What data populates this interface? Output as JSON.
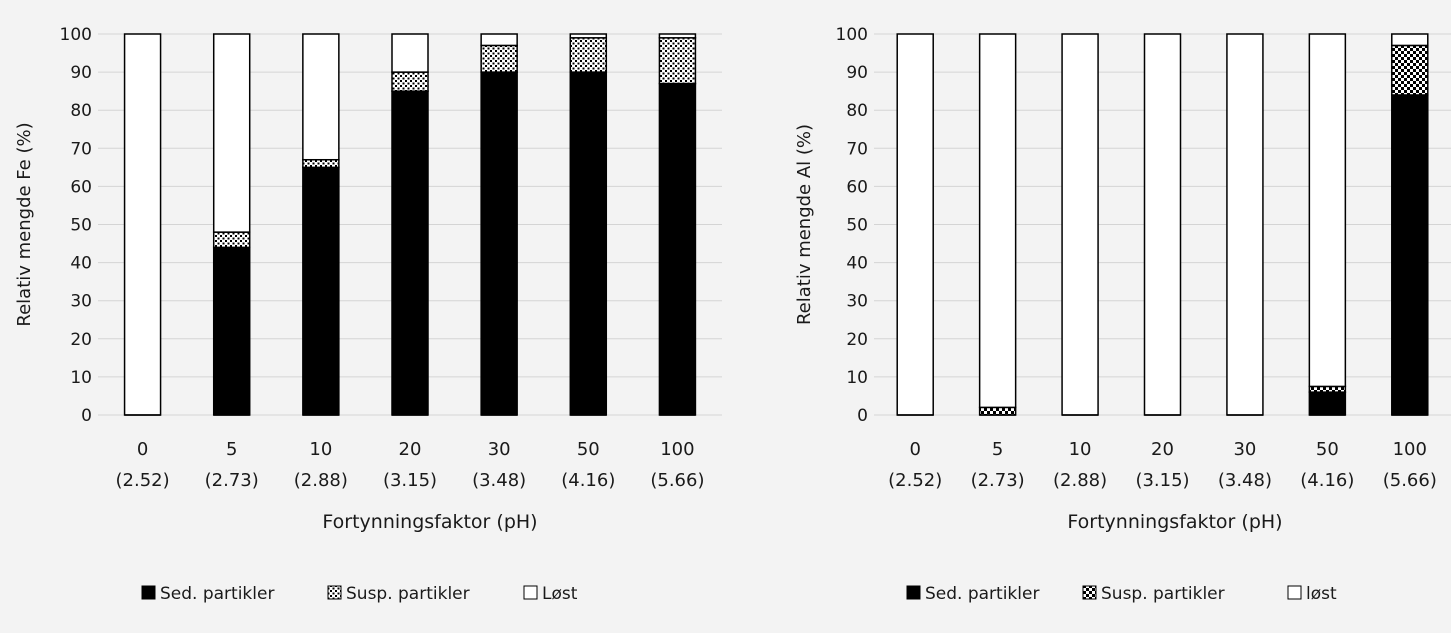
{
  "chart_data": [
    {
      "type": "bar",
      "stacked": true,
      "categories": [
        "0",
        "5",
        "10",
        "20",
        "30",
        "50",
        "100"
      ],
      "category_sublabels": [
        "(2.52)",
        "(2.73)",
        "(2.88)",
        "(3.15)",
        "(3.48)",
        "(4.16)",
        "(5.66)"
      ],
      "xlabel": "Fortynningsfaktor (pH)",
      "ylabel": "Relativ mengde Fe (%)",
      "ylim": [
        0,
        100
      ],
      "yticks": [
        0,
        10,
        20,
        30,
        40,
        50,
        60,
        70,
        80,
        90,
        100
      ],
      "grid": true,
      "legend_position": "bottom",
      "series": [
        {
          "name": "Sed. partikler",
          "pattern": "solid",
          "color": "#000000",
          "values": [
            0,
            44,
            65,
            85,
            90,
            90,
            87
          ]
        },
        {
          "name": "Susp. partikler",
          "pattern": "dots",
          "color": "#000000",
          "values": [
            0,
            4,
            2,
            5,
            7,
            9,
            12
          ]
        },
        {
          "name": "Løst",
          "pattern": "empty",
          "color": "#ffffff",
          "values": [
            100,
            52,
            33,
            10,
            3,
            1,
            1
          ]
        }
      ]
    },
    {
      "type": "bar",
      "stacked": true,
      "categories": [
        "0",
        "5",
        "10",
        "20",
        "30",
        "50",
        "100"
      ],
      "category_sublabels": [
        "(2.52)",
        "(2.73)",
        "(2.88)",
        "(3.15)",
        "(3.48)",
        "(4.16)",
        "(5.66)"
      ],
      "xlabel": "Fortynningsfaktor (pH)",
      "ylabel": "Relativ mengde Al (%)",
      "ylim": [
        0,
        100
      ],
      "yticks": [
        0,
        10,
        20,
        30,
        40,
        50,
        60,
        70,
        80,
        90,
        100
      ],
      "grid": true,
      "legend_position": "bottom",
      "series": [
        {
          "name": "Sed. partikler",
          "pattern": "solid",
          "color": "#000000",
          "values": [
            0,
            0,
            0,
            0,
            0,
            6,
            84
          ]
        },
        {
          "name": "Susp. partikler",
          "pattern": "checker",
          "color": "#000000",
          "values": [
            0,
            2,
            0,
            0,
            0,
            1.5,
            13
          ]
        },
        {
          "name": "løst",
          "pattern": "empty",
          "color": "#ffffff",
          "values": [
            100,
            98,
            100,
            100,
            100,
            92.5,
            3
          ]
        }
      ]
    }
  ]
}
